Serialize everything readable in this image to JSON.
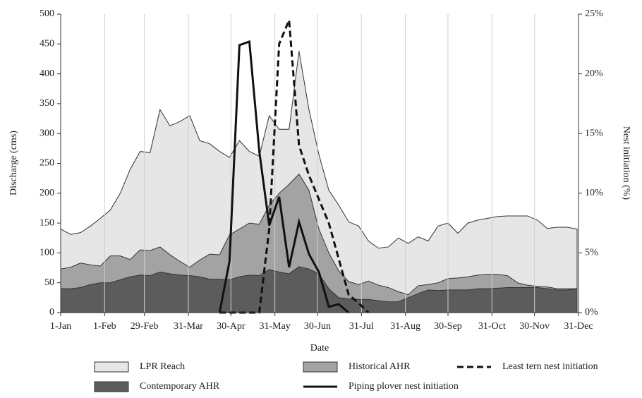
{
  "chart_data": {
    "type": "area",
    "xlabel": "Date",
    "ylabel": "Discharge (cms)",
    "y2label": "Nest initiation (%)",
    "x": [
      1,
      8,
      15,
      22,
      29,
      36,
      43,
      50,
      57,
      64,
      71,
      78,
      85,
      92,
      99,
      106,
      113,
      120,
      127,
      134,
      141,
      148,
      155,
      162,
      169,
      176,
      183,
      190,
      197,
      204,
      211,
      218,
      225,
      232,
      239,
      246,
      253,
      260,
      267,
      274,
      281,
      288,
      295,
      302,
      309,
      316,
      323,
      330,
      337,
      344,
      351,
      358,
      365
    ],
    "xlim": [
      1,
      366
    ],
    "xticks": [
      {
        "value": 1,
        "label": "1-Jan"
      },
      {
        "value": 32,
        "label": "1-Feb"
      },
      {
        "value": 60,
        "label": "29-Feb"
      },
      {
        "value": 91,
        "label": "31-Mar"
      },
      {
        "value": 121,
        "label": "30-Apr"
      },
      {
        "value": 152,
        "label": "31-May"
      },
      {
        "value": 182,
        "label": "30-Jun"
      },
      {
        "value": 213,
        "label": "31-Jul"
      },
      {
        "value": 244,
        "label": "31-Aug"
      },
      {
        "value": 274,
        "label": "30-Sep"
      },
      {
        "value": 305,
        "label": "31-Oct"
      },
      {
        "value": 335,
        "label": "30-Nov"
      },
      {
        "value": 366,
        "label": "31-Dec"
      }
    ],
    "ylim": [
      0,
      500
    ],
    "yticks": [
      0,
      50,
      100,
      150,
      200,
      250,
      300,
      350,
      400,
      450,
      500
    ],
    "y2lim": [
      0,
      25
    ],
    "y2ticks": [
      {
        "value": 0,
        "label": "0%"
      },
      {
        "value": 5,
        "label": "5%"
      },
      {
        "value": 10,
        "label": "10%"
      },
      {
        "value": 15,
        "label": "15%"
      },
      {
        "value": 20,
        "label": "20%"
      },
      {
        "value": 25,
        "label": "25%"
      }
    ],
    "grid": true,
    "series": [
      {
        "name": "LPR Reach",
        "type": "area",
        "color": "#e6e6e6",
        "values": [
          140,
          131,
          134,
          145,
          158,
          172,
          200,
          240,
          270,
          268,
          340,
          313,
          320,
          330,
          288,
          283,
          270,
          260,
          288,
          270,
          262,
          330,
          307,
          307,
          438,
          340,
          265,
          205,
          180,
          152,
          145,
          120,
          108,
          110,
          125,
          116,
          127,
          120,
          145,
          150,
          133,
          150,
          155,
          158,
          161,
          162,
          162,
          162,
          155,
          141,
          143,
          143,
          140
        ]
      },
      {
        "name": "Historical AHR",
        "type": "area",
        "color": "#a3a3a3",
        "values": [
          73,
          76,
          83,
          80,
          78,
          95,
          95,
          89,
          105,
          104,
          110,
          97,
          86,
          76,
          88,
          98,
          97,
          130,
          140,
          150,
          148,
          180,
          200,
          215,
          232,
          205,
          140,
          100,
          70,
          52,
          47,
          53,
          46,
          42,
          35,
          30,
          45,
          47,
          50,
          57,
          58,
          60,
          63,
          64,
          64,
          62,
          50,
          46,
          44,
          43,
          40,
          40,
          40
        ]
      },
      {
        "name": "Contemporary AHR",
        "type": "area",
        "color": "#5c5c5c",
        "values": [
          40,
          40,
          42,
          47,
          50,
          50,
          55,
          60,
          63,
          62,
          68,
          65,
          63,
          62,
          60,
          56,
          56,
          55,
          60,
          63,
          62,
          72,
          68,
          65,
          77,
          73,
          65,
          40,
          25,
          23,
          22,
          22,
          20,
          18,
          18,
          25,
          32,
          38,
          37,
          38,
          38,
          38,
          40,
          40,
          41,
          42,
          42,
          42,
          42,
          40,
          38,
          38,
          40
        ]
      },
      {
        "name": "Piping plover nest initiation",
        "type": "line",
        "axis": "y2",
        "color": "#111111",
        "linestyle": "solid",
        "values": [
          null,
          null,
          null,
          null,
          null,
          null,
          null,
          null,
          null,
          null,
          null,
          null,
          null,
          null,
          null,
          null,
          0,
          4.3,
          22.4,
          22.7,
          13.5,
          7.3,
          9.7,
          3.8,
          7.6,
          4.9,
          3.4,
          0.5,
          0.7,
          0,
          null,
          null,
          null,
          null,
          null,
          null,
          null,
          null,
          null,
          null,
          null,
          null,
          null,
          null,
          null,
          null,
          null,
          null,
          null,
          null,
          null,
          null,
          null
        ]
      },
      {
        "name": "Least tern nest initiation",
        "type": "line",
        "axis": "y2",
        "color": "#111111",
        "linestyle": "dashed",
        "values": [
          null,
          null,
          null,
          null,
          null,
          null,
          null,
          null,
          null,
          null,
          null,
          null,
          null,
          null,
          null,
          null,
          0,
          0,
          0,
          0,
          0,
          7,
          22.5,
          24.5,
          14,
          11.5,
          9.5,
          7.5,
          4.5,
          1.5,
          0.8,
          0,
          null,
          null,
          null,
          null,
          null,
          null,
          null,
          null,
          null,
          null,
          null,
          null,
          null,
          null,
          null,
          null,
          null,
          null,
          null,
          null,
          null
        ]
      }
    ]
  }
}
